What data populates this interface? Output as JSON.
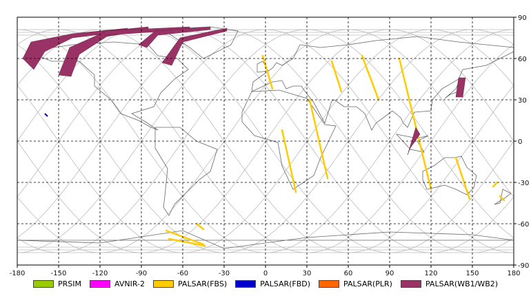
{
  "colors": {
    "prsim": "#99cc00",
    "avnir2": "#ff00ff",
    "palsar_fbs": "#ffcc00",
    "palsar_fbd": "#0000cc",
    "palsar_plr": "#ff6600",
    "palsar_wb": "#993366",
    "grid": "#000000",
    "orbit": "#bbbbbb",
    "coast": "#666666"
  },
  "axes": {
    "x_ticks": [
      "-180",
      "-150",
      "-120",
      "-90",
      "-60",
      "-30",
      "0",
      "30",
      "60",
      "90",
      "120",
      "150",
      "180"
    ],
    "y_ticks": [
      "90",
      "60",
      "30",
      "0",
      "-30",
      "-60",
      "-90"
    ],
    "xlim": [
      -180,
      180
    ],
    "ylim": [
      -90,
      90
    ],
    "grid": "dashed"
  },
  "legend": [
    {
      "label": "PRSIM",
      "color_key": "prsim"
    },
    {
      "label": "AVNIR-2",
      "color_key": "avnir2"
    },
    {
      "label": "PALSAR(FBS)",
      "color_key": "palsar_fbs"
    },
    {
      "label": "PALSAR(FBD)",
      "color_key": "palsar_fbd"
    },
    {
      "label": "PALSAR(PLR)",
      "color_key": "palsar_plr"
    },
    {
      "label": "PALSAR(WB1/WB2)",
      "color_key": "palsar_wb"
    }
  ],
  "swaths": {
    "palsar_fbs": [
      [
        [
          -2,
          62
        ],
        [
          5,
          38
        ]
      ],
      [
        [
          48,
          58
        ],
        [
          55,
          36
        ]
      ],
      [
        [
          70,
          62
        ],
        [
          82,
          30
        ]
      ],
      [
        [
          97,
          60
        ],
        [
          120,
          -35
        ]
      ],
      [
        [
          32,
          30
        ],
        [
          45,
          -27
        ]
      ],
      [
        [
          12,
          8
        ],
        [
          22,
          -37
        ]
      ],
      [
        [
          138,
          -12
        ],
        [
          148,
          -42
        ]
      ],
      [
        [
          -72,
          -65
        ],
        [
          -45,
          -75
        ]
      ],
      [
        [
          -70,
          -71
        ],
        [
          -44,
          -76
        ]
      ],
      [
        [
          -50,
          -60
        ],
        [
          -45,
          -64
        ]
      ],
      [
        [
          165,
          -33
        ],
        [
          168,
          -30
        ]
      ],
      [
        [
          170,
          -40
        ],
        [
          173,
          -43
        ]
      ]
    ],
    "palsar_fbd": [
      [
        [
          -160,
          20
        ],
        [
          -158,
          18
        ]
      ]
    ],
    "palsar_wb": [
      [
        [
          -176,
          60
        ],
        [
          -170,
          72
        ],
        [
          -140,
          78
        ],
        [
          -100,
          82
        ],
        [
          -100,
          80
        ],
        [
          -140,
          75
        ],
        [
          -160,
          65
        ],
        [
          -168,
          52
        ]
      ],
      [
        [
          -150,
          48
        ],
        [
          -142,
          68
        ],
        [
          -115,
          80
        ],
        [
          -85,
          83
        ],
        [
          -85,
          81
        ],
        [
          -115,
          76
        ],
        [
          -135,
          63
        ],
        [
          -141,
          47
        ]
      ],
      [
        [
          -118,
          80
        ],
        [
          -55,
          83
        ],
        [
          -55,
          81
        ],
        [
          -116,
          77
        ]
      ],
      [
        [
          -92,
          70
        ],
        [
          -80,
          80
        ],
        [
          -40,
          83
        ],
        [
          -40,
          81
        ],
        [
          -78,
          77
        ],
        [
          -86,
          68
        ]
      ],
      [
        [
          -75,
          57
        ],
        [
          -62,
          75
        ],
        [
          -28,
          82
        ],
        [
          -28,
          80
        ],
        [
          -60,
          72
        ],
        [
          -68,
          55
        ]
      ],
      [
        [
          140,
          46
        ],
        [
          145,
          46
        ],
        [
          143,
          32
        ],
        [
          138,
          32
        ]
      ],
      [
        [
          105,
          -5
        ],
        [
          112,
          5
        ],
        [
          109,
          10
        ],
        [
          103,
          -10
        ]
      ]
    ]
  }
}
